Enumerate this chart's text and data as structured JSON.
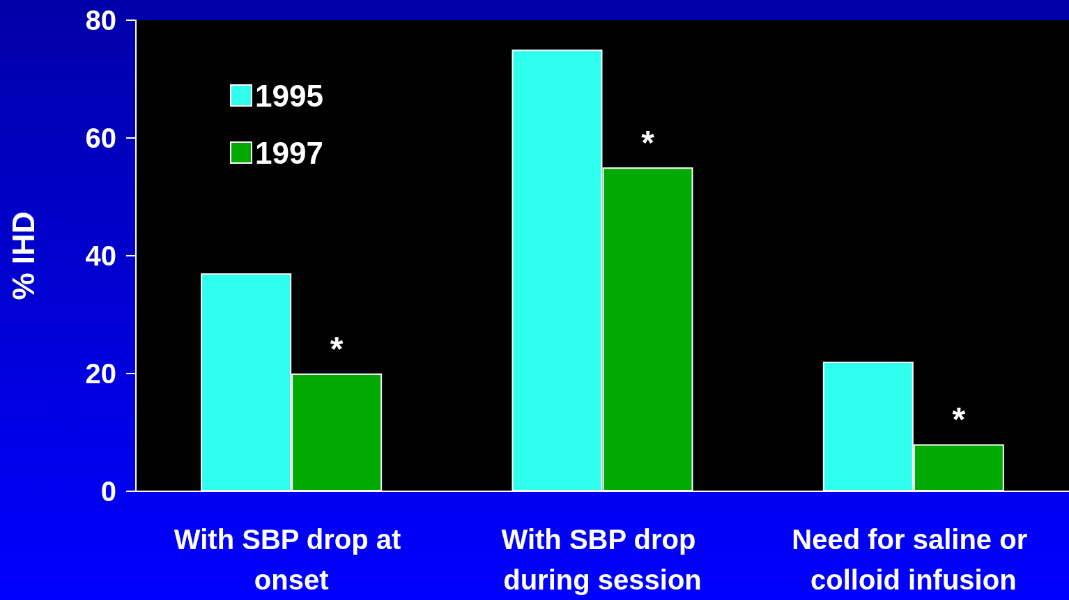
{
  "chart_data": {
    "type": "bar",
    "ylabel": "% IHD",
    "categories": [
      "With SBP drop at onset",
      "With SBP drop during session",
      "Need for saline or colloid infusion"
    ],
    "series": [
      {
        "name": "1995",
        "color": "#2effee",
        "values": [
          37,
          75,
          22
        ]
      },
      {
        "name": "1997",
        "color": "#00aa00",
        "values": [
          20,
          55,
          8
        ]
      }
    ],
    "ylim": [
      0,
      80
    ],
    "yticks": [
      0,
      20,
      40,
      60,
      80
    ],
    "legend": "top left",
    "annotations": [
      {
        "text": "*",
        "x": "With SBP drop at onset",
        "y": 20
      },
      {
        "text": "*",
        "x": "With SBP drop during session",
        "y": 55
      },
      {
        "text": "*",
        "x": "Need for saline or colloid infusion",
        "y": 8
      }
    ]
  }
}
